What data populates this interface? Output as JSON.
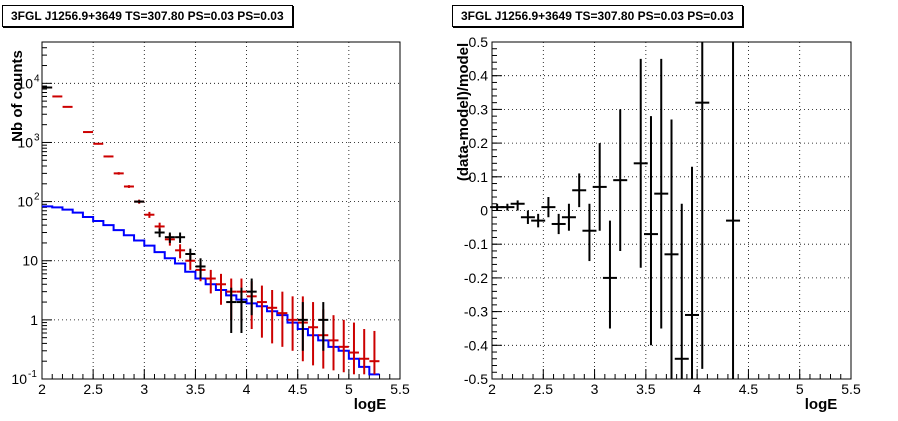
{
  "chart_data": [
    {
      "type": "line",
      "title": "3FGL J1256.9+3649 TS=307.80 PS=0.03 PS=0.03",
      "xlabel": "logE",
      "ylabel": "Nb of counts",
      "xlim": [
        2,
        5.5
      ],
      "ylim": [
        0.1,
        50000
      ],
      "yscale": "log",
      "grid": true,
      "x_ticks": [
        "2",
        "2.5",
        "3",
        "3.5",
        "4",
        "4.5",
        "5",
        "5.5"
      ],
      "y_ticks": [
        {
          "v": 0.1,
          "base": "10",
          "exp": "-1"
        },
        {
          "v": 1,
          "base": "1",
          "exp": ""
        },
        {
          "v": 10,
          "base": "10",
          "exp": ""
        },
        {
          "v": 100,
          "base": "10",
          "exp": "2"
        },
        {
          "v": 1000,
          "base": "10",
          "exp": "3"
        },
        {
          "v": 10000,
          "base": "10",
          "exp": "4"
        }
      ],
      "model_hist": {
        "color": "#0000ff",
        "edges": [
          2.0,
          2.1,
          2.2,
          2.3,
          2.4,
          2.5,
          2.6,
          2.7,
          2.8,
          2.9,
          3.0,
          3.1,
          3.2,
          3.3,
          3.4,
          3.5,
          3.6,
          3.7,
          3.8,
          3.9,
          4.0,
          4.1,
          4.2,
          4.3,
          4.4,
          4.5,
          4.6,
          4.7,
          4.8,
          4.9,
          5.0,
          5.1,
          5.2,
          5.3
        ],
        "values": [
          83,
          80,
          73,
          65,
          55,
          47,
          40,
          33,
          27,
          22,
          18,
          14,
          11,
          9,
          6.5,
          5,
          4,
          3.2,
          2.6,
          2.2,
          1.9,
          1.7,
          1.4,
          1.2,
          0.9,
          0.7,
          0.55,
          0.45,
          0.35,
          0.3,
          0.22,
          0.16,
          0.12
        ]
      },
      "series": [
        {
          "color": "#cc0000",
          "points": [
            {
              "x": 2.05,
              "y": 8500,
              "lo": 8300,
              "hi": 8700
            },
            {
              "x": 2.15,
              "y": 6000,
              "lo": 5850,
              "hi": 6150
            },
            {
              "x": 2.25,
              "y": 4000,
              "lo": 3900,
              "hi": 4100
            },
            {
              "x": 2.45,
              "y": 1500,
              "lo": 1460,
              "hi": 1540
            },
            {
              "x": 2.55,
              "y": 950,
              "lo": 920,
              "hi": 980
            },
            {
              "x": 2.65,
              "y": 580,
              "lo": 560,
              "hi": 600
            },
            {
              "x": 2.75,
              "y": 300,
              "lo": 285,
              "hi": 315
            },
            {
              "x": 2.85,
              "y": 180,
              "lo": 170,
              "hi": 190
            },
            {
              "x": 2.95,
              "y": 100,
              "lo": 92,
              "hi": 108
            },
            {
              "x": 3.05,
              "y": 60,
              "lo": 53,
              "hi": 67
            },
            {
              "x": 3.15,
              "y": 38,
              "lo": 32,
              "hi": 44
            },
            {
              "x": 3.25,
              "y": 23,
              "lo": 18,
              "hi": 28
            },
            {
              "x": 3.35,
              "y": 15,
              "lo": 11,
              "hi": 19
            },
            {
              "x": 3.45,
              "y": 10,
              "lo": 7,
              "hi": 13
            },
            {
              "x": 3.55,
              "y": 7,
              "lo": 4.5,
              "hi": 9.5
            },
            {
              "x": 3.65,
              "y": 5,
              "lo": 2.8,
              "hi": 7
            },
            {
              "x": 3.75,
              "y": 4,
              "lo": 1.8,
              "hi": 6
            },
            {
              "x": 3.85,
              "y": 3,
              "lo": 1.0,
              "hi": 5
            },
            {
              "x": 3.95,
              "y": 3,
              "lo": 0.9,
              "hi": 5
            },
            {
              "x": 4.05,
              "y": 2.5,
              "lo": 0.7,
              "hi": 4.5
            },
            {
              "x": 4.15,
              "y": 2.0,
              "lo": 0.5,
              "hi": 3.8
            },
            {
              "x": 4.25,
              "y": 1.6,
              "lo": 0.4,
              "hi": 3.2
            },
            {
              "x": 4.35,
              "y": 1.3,
              "lo": 0.35,
              "hi": 3.0
            },
            {
              "x": 4.45,
              "y": 1.0,
              "lo": 0.3,
              "hi": 2.5
            },
            {
              "x": 4.55,
              "y": 0.9,
              "lo": 0.2,
              "hi": 2.5
            },
            {
              "x": 4.65,
              "y": 0.75,
              "lo": 0.17,
              "hi": 2.0
            },
            {
              "x": 4.75,
              "y": 0.55,
              "lo": 0.15,
              "hi": 1.5
            },
            {
              "x": 4.85,
              "y": 0.45,
              "lo": 0.14,
              "hi": 1.2
            },
            {
              "x": 4.95,
              "y": 0.35,
              "lo": 0.13,
              "hi": 1.0
            },
            {
              "x": 5.05,
              "y": 0.28,
              "lo": 0.12,
              "hi": 0.9
            },
            {
              "x": 5.15,
              "y": 0.22,
              "lo": 0.12,
              "hi": 0.7
            },
            {
              "x": 5.25,
              "y": 0.2,
              "lo": 0.12,
              "hi": 0.65
            }
          ]
        },
        {
          "color": "#000000",
          "points": [
            {
              "x": 2.05,
              "y": 8500,
              "lo": 8400,
              "hi": 8600
            },
            {
              "x": 2.95,
              "y": 100,
              "lo": 95,
              "hi": 105
            },
            {
              "x": 3.15,
              "y": 30,
              "lo": 25,
              "hi": 35
            },
            {
              "x": 3.25,
              "y": 25,
              "lo": 20,
              "hi": 30
            },
            {
              "x": 3.35,
              "y": 25,
              "lo": 20,
              "hi": 30
            },
            {
              "x": 3.45,
              "y": 13,
              "lo": 10,
              "hi": 16
            },
            {
              "x": 3.55,
              "y": 8,
              "lo": 5,
              "hi": 11
            },
            {
              "x": 3.85,
              "y": 2,
              "lo": 0.6,
              "hi": 3.5
            },
            {
              "x": 3.95,
              "y": 2,
              "lo": 0.6,
              "hi": 3.5
            },
            {
              "x": 4.05,
              "y": 3,
              "lo": 1.2,
              "hi": 5
            },
            {
              "x": 4.55,
              "y": 1,
              "lo": 0.3,
              "hi": 2
            },
            {
              "x": 4.75,
              "y": 1,
              "lo": 0.3,
              "hi": 2
            }
          ]
        }
      ]
    },
    {
      "type": "scatter",
      "title": "3FGL J1256.9+3649 TS=307.80 PS=0.03 PS=0.03",
      "xlabel": "logE",
      "ylabel": "(data-model)/model",
      "xlim": [
        2,
        5.5
      ],
      "ylim": [
        -0.5,
        0.5
      ],
      "grid": true,
      "x_ticks": [
        "2",
        "2.5",
        "3",
        "3.5",
        "4",
        "4.5",
        "5",
        "5.5"
      ],
      "y_ticks": [
        "-0.5",
        "-0.4",
        "-0.3",
        "-0.2",
        "-0.1",
        "0",
        "0.1",
        "0.2",
        "0.3",
        "0.4",
        "0.5"
      ],
      "series": [
        {
          "color": "#000000",
          "points": [
            {
              "x": 2.05,
              "y": 0.01,
              "lo": 0.0,
              "hi": 0.02
            },
            {
              "x": 2.15,
              "y": 0.01,
              "lo": 0.0,
              "hi": 0.02
            },
            {
              "x": 2.25,
              "y": 0.02,
              "lo": 0.0,
              "hi": 0.03
            },
            {
              "x": 2.35,
              "y": -0.02,
              "lo": -0.04,
              "hi": 0.0
            },
            {
              "x": 2.45,
              "y": -0.03,
              "lo": -0.05,
              "hi": -0.01
            },
            {
              "x": 2.55,
              "y": 0.01,
              "lo": -0.02,
              "hi": 0.04
            },
            {
              "x": 2.65,
              "y": -0.04,
              "lo": -0.07,
              "hi": -0.01
            },
            {
              "x": 2.75,
              "y": -0.02,
              "lo": -0.06,
              "hi": 0.02
            },
            {
              "x": 2.85,
              "y": 0.06,
              "lo": 0.01,
              "hi": 0.11
            },
            {
              "x": 2.95,
              "y": -0.06,
              "lo": -0.15,
              "hi": 0.02
            },
            {
              "x": 3.05,
              "y": 0.07,
              "lo": -0.06,
              "hi": 0.2
            },
            {
              "x": 3.15,
              "y": -0.2,
              "lo": -0.35,
              "hi": -0.03
            },
            {
              "x": 3.25,
              "y": 0.09,
              "lo": -0.12,
              "hi": 0.3
            },
            {
              "x": 3.45,
              "y": 0.14,
              "lo": -0.17,
              "hi": 0.45
            },
            {
              "x": 3.55,
              "y": -0.07,
              "lo": -0.4,
              "hi": 0.28
            },
            {
              "x": 3.65,
              "y": 0.05,
              "lo": -0.35,
              "hi": 0.45
            },
            {
              "x": 3.75,
              "y": -0.13,
              "lo": -0.5,
              "hi": 0.27
            },
            {
              "x": 3.85,
              "y": -0.44,
              "lo": -0.5,
              "hi": 0.02
            },
            {
              "x": 3.95,
              "y": -0.31,
              "lo": -0.5,
              "hi": 0.13
            },
            {
              "x": 4.05,
              "y": 0.32,
              "lo": -0.47,
              "hi": 0.5
            },
            {
              "x": 4.35,
              "y": -0.03,
              "lo": -0.5,
              "hi": 0.5
            }
          ]
        }
      ]
    }
  ]
}
